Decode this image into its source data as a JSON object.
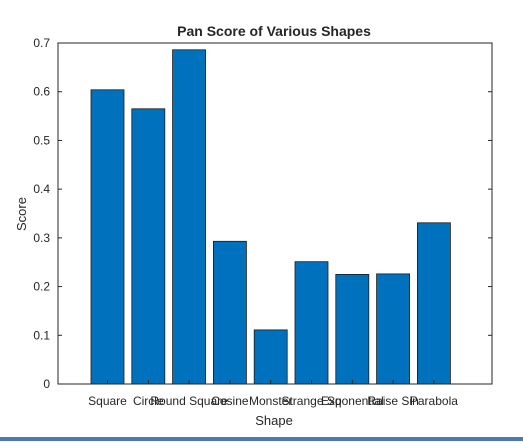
{
  "chart_data": {
    "type": "bar",
    "title": "Pan Score of Various Shapes",
    "xlabel": "Shape",
    "ylabel": "Score",
    "categories": [
      "Square",
      "Circle",
      "Round Square",
      "Cosine",
      "Monster",
      "Strange Sq",
      "Exponential",
      "Raise Sin",
      "Parabola"
    ],
    "values": [
      0.604,
      0.565,
      0.686,
      0.293,
      0.111,
      0.251,
      0.225,
      0.226,
      0.331
    ],
    "ylim": [
      0,
      0.7
    ],
    "yticks": [
      "0",
      "0.1",
      "0.2",
      "0.3",
      "0.4",
      "0.5",
      "0.6",
      "0.7"
    ],
    "bar_color": "#0072bd",
    "grid": false,
    "legend": "none"
  }
}
